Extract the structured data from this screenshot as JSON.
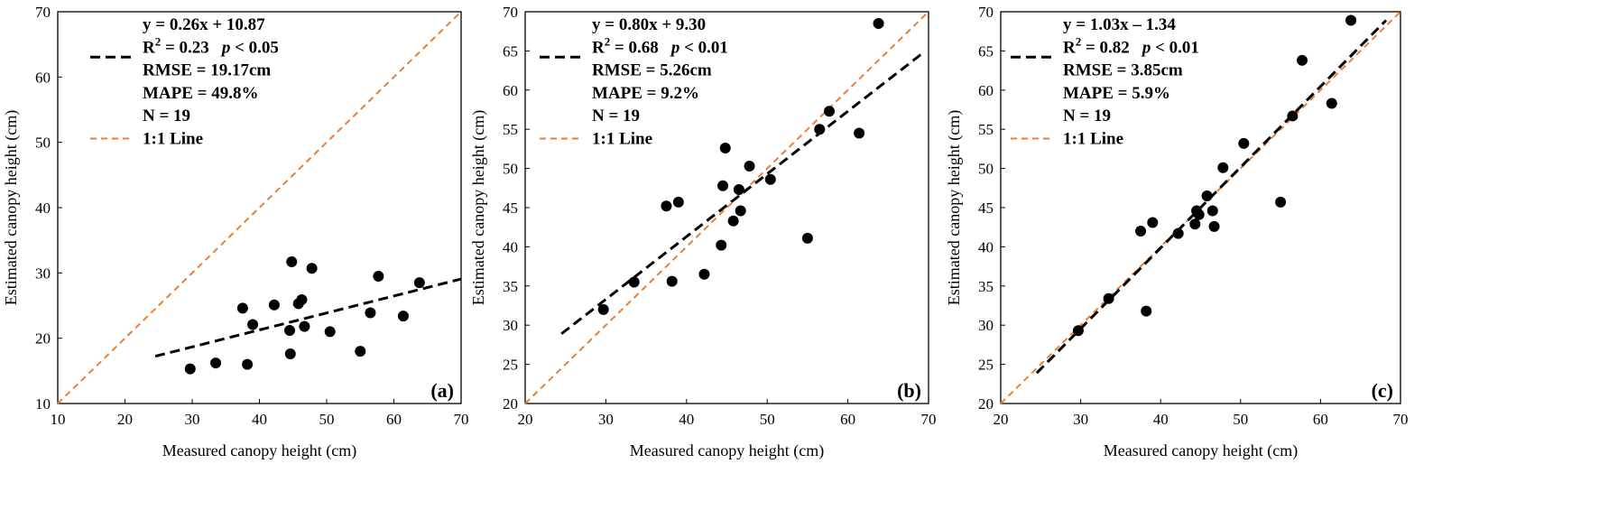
{
  "chart_data": [
    {
      "type": "scatter",
      "panel_label": "(a)",
      "xlabel": "Measured canopy height (cm)",
      "ylabel": "Estimated canopy height (cm)",
      "xlim": [
        10,
        70
      ],
      "ylim": [
        10,
        70
      ],
      "xticks": [
        "10",
        "20",
        "30",
        "40",
        "50",
        "60",
        "70"
      ],
      "yticks": [
        "10",
        "20",
        "30",
        "40",
        "50",
        "60",
        "70"
      ],
      "stats": {
        "equation": "y = 0.26x + 10.87",
        "r2_label": "R",
        "r2_sup": "2",
        "r2_value": " = 0.23",
        "p_sym": "p",
        "p_value": " < 0.05",
        "rmse": "RMSE = 19.17cm",
        "mape": "MAPE = 49.8%",
        "n": "N = 19",
        "one_to_one": "1:1 Line"
      },
      "fit": {
        "slope": 0.26,
        "intercept": 10.87,
        "x_range": [
          24.5,
          70
        ]
      },
      "points": [
        [
          29.7,
          15.3
        ],
        [
          33.5,
          16.2
        ],
        [
          37.5,
          24.6
        ],
        [
          38.2,
          16.0
        ],
        [
          39.0,
          22.1
        ],
        [
          42.2,
          25.1
        ],
        [
          44.5,
          21.2
        ],
        [
          44.6,
          17.6
        ],
        [
          44.8,
          31.7
        ],
        [
          45.8,
          25.3
        ],
        [
          46.3,
          25.9
        ],
        [
          46.7,
          21.8
        ],
        [
          47.8,
          30.7
        ],
        [
          50.5,
          21.0
        ],
        [
          55.0,
          18.0
        ],
        [
          56.5,
          23.9
        ],
        [
          57.7,
          29.5
        ],
        [
          61.4,
          23.4
        ],
        [
          63.8,
          28.5
        ]
      ]
    },
    {
      "type": "scatter",
      "panel_label": "(b)",
      "xlabel": "Measured canopy height (cm)",
      "ylabel": "Estimated canopy height (cm)",
      "xlim": [
        20,
        70
      ],
      "ylim": [
        20,
        70
      ],
      "xticks": [
        "20",
        "30",
        "40",
        "50",
        "60",
        "70"
      ],
      "yticks": [
        "20",
        "25",
        "30",
        "35",
        "40",
        "45",
        "50",
        "55",
        "60",
        "65",
        "70"
      ],
      "stats": {
        "equation": "y = 0.80x + 9.30",
        "r2_label": "R",
        "r2_sup": "2",
        "r2_value": " = 0.68",
        "p_sym": "p",
        "p_value": " < 0.01",
        "rmse": "RMSE = 5.26cm",
        "mape": "MAPE = 9.2%",
        "n": "N = 19",
        "one_to_one": "1:1 Line"
      },
      "fit": {
        "slope": 0.8,
        "intercept": 9.3,
        "x_range": [
          24.5,
          69.5
        ]
      },
      "points": [
        [
          29.7,
          32.0
        ],
        [
          33.5,
          35.5
        ],
        [
          37.5,
          45.2
        ],
        [
          38.2,
          35.6
        ],
        [
          39.0,
          45.7
        ],
        [
          42.2,
          36.5
        ],
        [
          44.3,
          40.2
        ],
        [
          44.5,
          47.8
        ],
        [
          44.8,
          52.6
        ],
        [
          45.8,
          43.3
        ],
        [
          46.5,
          47.3
        ],
        [
          46.7,
          44.6
        ],
        [
          47.8,
          50.3
        ],
        [
          50.4,
          48.6
        ],
        [
          55.0,
          41.1
        ],
        [
          56.5,
          55.0
        ],
        [
          57.7,
          57.3
        ],
        [
          61.4,
          54.5
        ],
        [
          63.8,
          68.5
        ]
      ]
    },
    {
      "type": "scatter",
      "panel_label": "(c)",
      "xlabel": "Measured canopy height (cm)",
      "ylabel": "Estimated canopy height (cm)",
      "xlim": [
        20,
        70
      ],
      "ylim": [
        20,
        70
      ],
      "xticks": [
        "20",
        "30",
        "40",
        "50",
        "60",
        "70"
      ],
      "yticks": [
        "20",
        "25",
        "30",
        "35",
        "40",
        "45",
        "50",
        "55",
        "60",
        "65",
        "70"
      ],
      "stats": {
        "equation": "y = 1.03x – 1.34",
        "r2_label": "R",
        "r2_sup": "2",
        "r2_value": " = 0.82",
        "p_sym": "p",
        "p_value": " < 0.01",
        "rmse": "RMSE = 3.85cm",
        "mape": "MAPE = 5.9%",
        "n": "N = 19",
        "one_to_one": "1:1 Line"
      },
      "fit": {
        "slope": 1.03,
        "intercept": -1.34,
        "x_range": [
          24.5,
          68.2
        ]
      },
      "points": [
        [
          29.7,
          29.3
        ],
        [
          33.5,
          33.4
        ],
        [
          37.5,
          42.0
        ],
        [
          38.2,
          31.8
        ],
        [
          39.0,
          43.1
        ],
        [
          42.2,
          41.7
        ],
        [
          44.3,
          42.9
        ],
        [
          44.5,
          44.6
        ],
        [
          44.8,
          44.1
        ],
        [
          45.8,
          46.5
        ],
        [
          46.5,
          44.6
        ],
        [
          46.7,
          42.6
        ],
        [
          47.8,
          50.1
        ],
        [
          50.4,
          53.2
        ],
        [
          55.0,
          45.7
        ],
        [
          56.5,
          56.7
        ],
        [
          57.7,
          63.8
        ],
        [
          61.4,
          58.3
        ],
        [
          63.8,
          68.9
        ]
      ]
    }
  ],
  "colors": {
    "points": "#000000",
    "fit": "#000000",
    "one_to_one": "#ed7d31"
  }
}
